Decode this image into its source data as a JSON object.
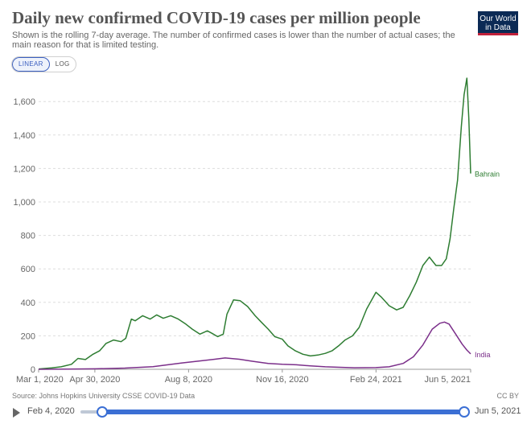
{
  "header": {
    "title": "Daily new confirmed COVID-19 cases per million people",
    "subtitle": "Shown is the rolling 7-day average. The number of confirmed cases is lower than the number of actual cases; the main reason for that is limited testing.",
    "logo_line1": "Our World",
    "logo_line2": "in Data"
  },
  "scale_toggle": {
    "linear_label": "LINEAR",
    "log_label": "LOG",
    "selected": "LINEAR"
  },
  "footer": {
    "source": "Source: Johns Hopkins University CSSE COVID-19 Data",
    "license": "CC BY"
  },
  "timeline": {
    "start_label": "Feb 4, 2020",
    "end_label": "Jun 5, 2021"
  },
  "colors": {
    "bahrain": "#2e7d32",
    "india": "#7b2f8a",
    "grid": "#dddddd",
    "accent": "#3b6fd4"
  },
  "chart_data": {
    "type": "line",
    "title": "Daily new confirmed COVID-19 cases per million people",
    "xlabel": "",
    "ylabel": "",
    "x_range": [
      "2020-03-01",
      "2021-06-05"
    ],
    "ylim": [
      0,
      1750
    ],
    "y_ticks": [
      0,
      200,
      400,
      600,
      800,
      1000,
      1200,
      1400,
      1600
    ],
    "y_tick_labels": [
      "0",
      "200",
      "400",
      "600",
      "800",
      "1,000",
      "1,200",
      "1,400",
      "1,600"
    ],
    "x_ticks": [
      "2020-03-01",
      "2020-04-30",
      "2020-08-08",
      "2020-11-16",
      "2021-02-24",
      "2021-06-05"
    ],
    "x_tick_labels": [
      "Mar 1, 2020",
      "Apr 30, 2020",
      "Aug 8, 2020",
      "Nov 16, 2020",
      "Feb 24, 2021",
      "Jun 5, 2021"
    ],
    "grid": "horizontal",
    "series": [
      {
        "name": "Bahrain",
        "color": "#2e7d32",
        "points": [
          [
            "2020-03-01",
            2
          ],
          [
            "2020-03-15",
            8
          ],
          [
            "2020-03-25",
            15
          ],
          [
            "2020-04-05",
            30
          ],
          [
            "2020-04-12",
            65
          ],
          [
            "2020-04-20",
            58
          ],
          [
            "2020-04-28",
            90
          ],
          [
            "2020-05-05",
            110
          ],
          [
            "2020-05-12",
            155
          ],
          [
            "2020-05-20",
            175
          ],
          [
            "2020-05-28",
            165
          ],
          [
            "2020-06-02",
            185
          ],
          [
            "2020-06-08",
            300
          ],
          [
            "2020-06-12",
            290
          ],
          [
            "2020-06-20",
            320
          ],
          [
            "2020-06-28",
            300
          ],
          [
            "2020-07-05",
            325
          ],
          [
            "2020-07-12",
            305
          ],
          [
            "2020-07-20",
            320
          ],
          [
            "2020-07-28",
            300
          ],
          [
            "2020-08-05",
            270
          ],
          [
            "2020-08-12",
            240
          ],
          [
            "2020-08-20",
            210
          ],
          [
            "2020-08-28",
            230
          ],
          [
            "2020-09-02",
            215
          ],
          [
            "2020-09-08",
            195
          ],
          [
            "2020-09-14",
            210
          ],
          [
            "2020-09-18",
            330
          ],
          [
            "2020-09-25",
            415
          ],
          [
            "2020-10-02",
            410
          ],
          [
            "2020-10-10",
            375
          ],
          [
            "2020-10-18",
            320
          ],
          [
            "2020-10-25",
            280
          ],
          [
            "2020-11-01",
            240
          ],
          [
            "2020-11-08",
            195
          ],
          [
            "2020-11-16",
            180
          ],
          [
            "2020-11-22",
            140
          ],
          [
            "2020-11-30",
            110
          ],
          [
            "2020-12-08",
            90
          ],
          [
            "2020-12-16",
            80
          ],
          [
            "2020-12-24",
            85
          ],
          [
            "2021-01-01",
            95
          ],
          [
            "2021-01-08",
            110
          ],
          [
            "2021-01-15",
            140
          ],
          [
            "2021-01-22",
            175
          ],
          [
            "2021-01-30",
            200
          ],
          [
            "2021-02-06",
            250
          ],
          [
            "2021-02-14",
            360
          ],
          [
            "2021-02-24",
            460
          ],
          [
            "2021-03-02",
            430
          ],
          [
            "2021-03-10",
            380
          ],
          [
            "2021-03-18",
            355
          ],
          [
            "2021-03-25",
            370
          ],
          [
            "2021-04-01",
            440
          ],
          [
            "2021-04-08",
            520
          ],
          [
            "2021-04-15",
            620
          ],
          [
            "2021-04-22",
            670
          ],
          [
            "2021-04-29",
            620
          ],
          [
            "2021-05-05",
            620
          ],
          [
            "2021-05-10",
            660
          ],
          [
            "2021-05-14",
            780
          ],
          [
            "2021-05-18",
            960
          ],
          [
            "2021-05-22",
            1130
          ],
          [
            "2021-05-26",
            1450
          ],
          [
            "2021-05-29",
            1640
          ],
          [
            "2021-06-01",
            1740
          ],
          [
            "2021-06-03",
            1500
          ],
          [
            "2021-06-05",
            1170
          ]
        ]
      },
      {
        "name": "India",
        "color": "#7b2f8a",
        "points": [
          [
            "2020-03-01",
            0
          ],
          [
            "2020-04-01",
            1
          ],
          [
            "2020-05-01",
            3
          ],
          [
            "2020-06-01",
            7
          ],
          [
            "2020-07-01",
            16
          ],
          [
            "2020-08-01",
            38
          ],
          [
            "2020-08-20",
            50
          ],
          [
            "2020-09-05",
            60
          ],
          [
            "2020-09-16",
            68
          ],
          [
            "2020-10-01",
            60
          ],
          [
            "2020-10-15",
            48
          ],
          [
            "2020-11-01",
            35
          ],
          [
            "2020-11-16",
            30
          ],
          [
            "2020-12-01",
            27
          ],
          [
            "2020-12-16",
            20
          ],
          [
            "2021-01-01",
            15
          ],
          [
            "2021-01-16",
            12
          ],
          [
            "2021-02-01",
            9
          ],
          [
            "2021-02-24",
            10
          ],
          [
            "2021-03-10",
            15
          ],
          [
            "2021-03-25",
            35
          ],
          [
            "2021-04-05",
            75
          ],
          [
            "2021-04-15",
            145
          ],
          [
            "2021-04-25",
            240
          ],
          [
            "2021-05-03",
            275
          ],
          [
            "2021-05-08",
            282
          ],
          [
            "2021-05-13",
            270
          ],
          [
            "2021-05-20",
            210
          ],
          [
            "2021-05-27",
            150
          ],
          [
            "2021-06-01",
            115
          ],
          [
            "2021-06-05",
            92
          ]
        ]
      }
    ]
  }
}
